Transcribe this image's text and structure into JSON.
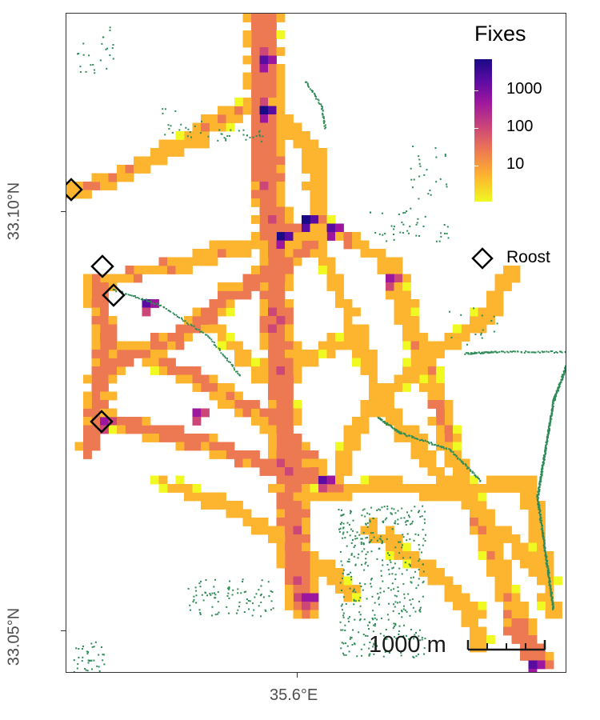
{
  "axes": {
    "y_ticks": [
      "33.10°N",
      "33.05°N"
    ],
    "x_ticks": [
      "35.6°E"
    ]
  },
  "legend": {
    "fill_title": "Fixes",
    "fill_scale": "log",
    "fill_breaks": [
      "1000",
      "100",
      "10"
    ],
    "fill_colors": [
      "#1a0a85",
      "#5a0ba2",
      "#9c179e",
      "#cc4778",
      "#ed7953",
      "#fdb42f",
      "#f0f921"
    ],
    "shape_label": "Roost"
  },
  "scale_bar": {
    "label": "1000 m"
  },
  "colors": {
    "background_feature": "#2e8b57",
    "roost_marker": "#000000"
  }
}
